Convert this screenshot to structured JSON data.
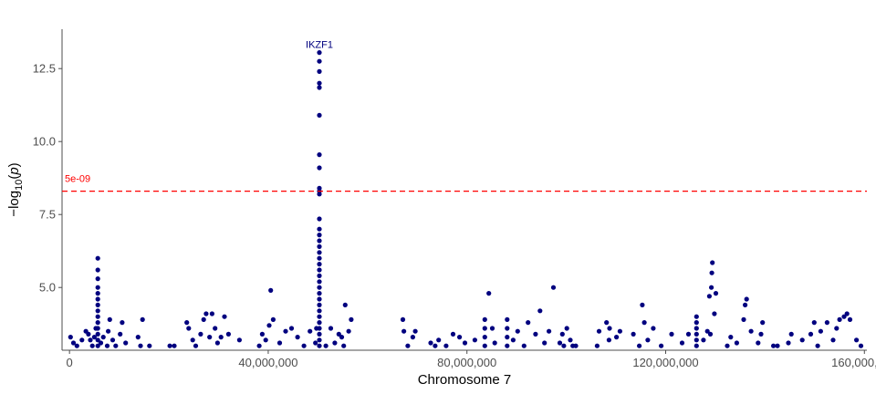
{
  "chart_data": {
    "type": "scatter",
    "title": "",
    "xlabel": "Chromosome 7",
    "ylabel_parts": [
      "−log",
      "10",
      "(",
      "p",
      ")"
    ],
    "xlim": [
      -1500000,
      160500000
    ],
    "ylim": [
      2.85,
      13.85
    ],
    "x_ticks": [
      0,
      40000000,
      80000000,
      120000000,
      160000000
    ],
    "x_tick_labels": [
      "0",
      "40,000,000",
      "80,000,000",
      "120,000,000",
      "160,000,000"
    ],
    "y_ticks": [
      5.0,
      7.5,
      10.0,
      12.5
    ],
    "y_tick_labels": [
      "5.0",
      "7.5",
      "10.0",
      "12.5"
    ],
    "grid": false,
    "point_color": "#00007F",
    "threshold": {
      "value": 8.3,
      "label": "5e-09",
      "color": "#FF0000"
    },
    "gene_labels": [
      {
        "text": "IKZF1",
        "x": 50300000,
        "y": 13.05,
        "color": "#00007F"
      }
    ],
    "points": [
      [
        200000,
        3.3
      ],
      [
        800000,
        3.1
      ],
      [
        1500000,
        3.0
      ],
      [
        2500000,
        3.2
      ],
      [
        3300000,
        3.5
      ],
      [
        3800000,
        3.4
      ],
      [
        4200000,
        3.2
      ],
      [
        4600000,
        3.0
      ],
      [
        5000000,
        3.3
      ],
      [
        5300000,
        3.6
      ],
      [
        5700000,
        3.0
      ],
      [
        5700000,
        3.2
      ],
      [
        5700000,
        3.4
      ],
      [
        5700000,
        3.6
      ],
      [
        5700000,
        3.8
      ],
      [
        5700000,
        4.0
      ],
      [
        5700000,
        4.2
      ],
      [
        5700000,
        4.4
      ],
      [
        5700000,
        4.6
      ],
      [
        5700000,
        4.8
      ],
      [
        5700000,
        5.0
      ],
      [
        5700000,
        5.3
      ],
      [
        5700000,
        5.6
      ],
      [
        5700000,
        6.0
      ],
      [
        6300000,
        3.1
      ],
      [
        6800000,
        3.3
      ],
      [
        7600000,
        3.0
      ],
      [
        7800000,
        3.5
      ],
      [
        8100000,
        3.9
      ],
      [
        8700000,
        3.2
      ],
      [
        9300000,
        3.0
      ],
      [
        10200000,
        3.4
      ],
      [
        10600000,
        3.8
      ],
      [
        11300000,
        3.1
      ],
      [
        13800000,
        3.3
      ],
      [
        14300000,
        3.0
      ],
      [
        14700000,
        3.9
      ],
      [
        16100000,
        3.0
      ],
      [
        20200000,
        3.0
      ],
      [
        21100000,
        3.0
      ],
      [
        23600000,
        3.8
      ],
      [
        24000000,
        3.6
      ],
      [
        24800000,
        3.2
      ],
      [
        25400000,
        3.0
      ],
      [
        26400000,
        3.4
      ],
      [
        27000000,
        3.9
      ],
      [
        27500000,
        4.1
      ],
      [
        28200000,
        3.3
      ],
      [
        28700000,
        4.1
      ],
      [
        29300000,
        3.6
      ],
      [
        29800000,
        3.1
      ],
      [
        30500000,
        3.3
      ],
      [
        31200000,
        4.0
      ],
      [
        32000000,
        3.4
      ],
      [
        34200000,
        3.2
      ],
      [
        38200000,
        3.0
      ],
      [
        38800000,
        3.4
      ],
      [
        39500000,
        3.2
      ],
      [
        40200000,
        3.7
      ],
      [
        40500000,
        4.9
      ],
      [
        41000000,
        3.9
      ],
      [
        42300000,
        3.1
      ],
      [
        43500000,
        3.5
      ],
      [
        44700000,
        3.6
      ],
      [
        45900000,
        3.3
      ],
      [
        47200000,
        3.0
      ],
      [
        48400000,
        3.5
      ],
      [
        49500000,
        3.1
      ],
      [
        49700000,
        3.6
      ],
      [
        50300000,
        3.0
      ],
      [
        50300000,
        3.2
      ],
      [
        50300000,
        3.4
      ],
      [
        50300000,
        3.6
      ],
      [
        50300000,
        3.8
      ],
      [
        50300000,
        4.0
      ],
      [
        50300000,
        4.2
      ],
      [
        50300000,
        4.4
      ],
      [
        50300000,
        4.6
      ],
      [
        50300000,
        4.8
      ],
      [
        50300000,
        5.0
      ],
      [
        50300000,
        5.2
      ],
      [
        50300000,
        5.4
      ],
      [
        50300000,
        5.6
      ],
      [
        50300000,
        5.8
      ],
      [
        50300000,
        6.0
      ],
      [
        50300000,
        6.2
      ],
      [
        50300000,
        6.4
      ],
      [
        50300000,
        6.6
      ],
      [
        50300000,
        6.8
      ],
      [
        50300000,
        7.0
      ],
      [
        50300000,
        7.35
      ],
      [
        50300000,
        8.2
      ],
      [
        50300000,
        8.3
      ],
      [
        50300000,
        8.4
      ],
      [
        50300000,
        9.1
      ],
      [
        50300000,
        9.55
      ],
      [
        50300000,
        10.9
      ],
      [
        50300000,
        11.85
      ],
      [
        50300000,
        12.0
      ],
      [
        50300000,
        12.4
      ],
      [
        50300000,
        12.75
      ],
      [
        50300000,
        13.05
      ],
      [
        51600000,
        3.0
      ],
      [
        52600000,
        3.6
      ],
      [
        53400000,
        3.1
      ],
      [
        54200000,
        3.4
      ],
      [
        54800000,
        3.3
      ],
      [
        55200000,
        3.0
      ],
      [
        55500000,
        4.4
      ],
      [
        56200000,
        3.5
      ],
      [
        56700000,
        3.9
      ],
      [
        67100000,
        3.9
      ],
      [
        67300000,
        3.5
      ],
      [
        68100000,
        3.0
      ],
      [
        69100000,
        3.3
      ],
      [
        69600000,
        3.5
      ],
      [
        72700000,
        3.1
      ],
      [
        73600000,
        3.0
      ],
      [
        74300000,
        3.2
      ],
      [
        75800000,
        3.0
      ],
      [
        77200000,
        3.4
      ],
      [
        78500000,
        3.3
      ],
      [
        79600000,
        3.1
      ],
      [
        81600000,
        3.2
      ],
      [
        83600000,
        3.0
      ],
      [
        83600000,
        3.3
      ],
      [
        83600000,
        3.6
      ],
      [
        83600000,
        3.9
      ],
      [
        84400000,
        4.8
      ],
      [
        85100000,
        3.6
      ],
      [
        85600000,
        3.1
      ],
      [
        88100000,
        3.0
      ],
      [
        88100000,
        3.3
      ],
      [
        88100000,
        3.6
      ],
      [
        88100000,
        3.9
      ],
      [
        89300000,
        3.2
      ],
      [
        90200000,
        3.5
      ],
      [
        91500000,
        3.0
      ],
      [
        92300000,
        3.8
      ],
      [
        93800000,
        3.4
      ],
      [
        94700000,
        4.2
      ],
      [
        95600000,
        3.1
      ],
      [
        96500000,
        3.5
      ],
      [
        97400000,
        5.0
      ],
      [
        98700000,
        3.1
      ],
      [
        99200000,
        3.4
      ],
      [
        99500000,
        3.0
      ],
      [
        100100000,
        3.6
      ],
      [
        100800000,
        3.2
      ],
      [
        101300000,
        3.0
      ],
      [
        101900000,
        3.0
      ],
      [
        106200000,
        3.0
      ],
      [
        106600000,
        3.5
      ],
      [
        108100000,
        3.8
      ],
      [
        108600000,
        3.2
      ],
      [
        108700000,
        3.6
      ],
      [
        110100000,
        3.3
      ],
      [
        110800000,
        3.5
      ],
      [
        113500000,
        3.4
      ],
      [
        114700000,
        3.0
      ],
      [
        115300000,
        4.4
      ],
      [
        115700000,
        3.8
      ],
      [
        116400000,
        3.2
      ],
      [
        117500000,
        3.6
      ],
      [
        119100000,
        3.0
      ],
      [
        121200000,
        3.4
      ],
      [
        123300000,
        3.1
      ],
      [
        124600000,
        3.4
      ],
      [
        126200000,
        3.0
      ],
      [
        126200000,
        3.2
      ],
      [
        126200000,
        3.4
      ],
      [
        126200000,
        3.6
      ],
      [
        126200000,
        3.8
      ],
      [
        126200000,
        4.0
      ],
      [
        127600000,
        3.2
      ],
      [
        128400000,
        3.5
      ],
      [
        128800000,
        4.7
      ],
      [
        129000000,
        3.4
      ],
      [
        129200000,
        5.0
      ],
      [
        129300000,
        5.5
      ],
      [
        129400000,
        5.85
      ],
      [
        129800000,
        4.1
      ],
      [
        130100000,
        4.8
      ],
      [
        132400000,
        3.0
      ],
      [
        133100000,
        3.3
      ],
      [
        134300000,
        3.1
      ],
      [
        135700000,
        3.9
      ],
      [
        136000000,
        4.4
      ],
      [
        136300000,
        4.6
      ],
      [
        137200000,
        3.5
      ],
      [
        138600000,
        3.1
      ],
      [
        139200000,
        3.4
      ],
      [
        139500000,
        3.8
      ],
      [
        141700000,
        3.0
      ],
      [
        142500000,
        3.0
      ],
      [
        144700000,
        3.1
      ],
      [
        145300000,
        3.4
      ],
      [
        147500000,
        3.2
      ],
      [
        149200000,
        3.4
      ],
      [
        149900000,
        3.8
      ],
      [
        150600000,
        3.0
      ],
      [
        151200000,
        3.5
      ],
      [
        152500000,
        3.8
      ],
      [
        153700000,
        3.2
      ],
      [
        154400000,
        3.6
      ],
      [
        155000000,
        3.9
      ],
      [
        155900000,
        4.0
      ],
      [
        156500000,
        4.1
      ],
      [
        157100000,
        3.9
      ],
      [
        158400000,
        3.2
      ],
      [
        159300000,
        3.0
      ]
    ]
  }
}
